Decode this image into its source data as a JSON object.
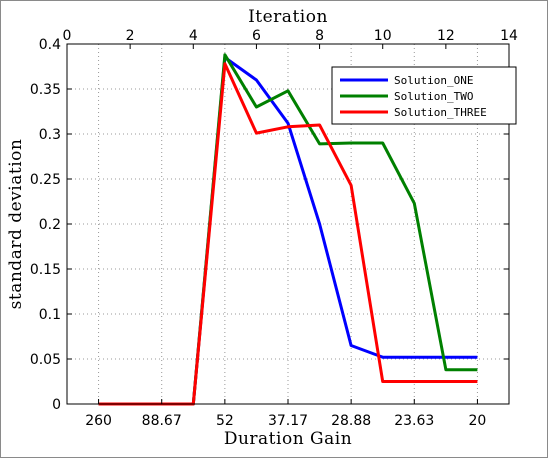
{
  "chart_data": {
    "type": "line",
    "xlabel_top": "Iteration",
    "xlabel": "Duration Gain",
    "ylabel": "standard deviation",
    "xlim": [
      0,
      14
    ],
    "ylim": [
      0,
      0.4
    ],
    "x_ticks_top": [
      "0",
      "2",
      "4",
      "6",
      "8",
      "10",
      "12",
      "14"
    ],
    "x_ticks_top_values": [
      0,
      2,
      4,
      6,
      8,
      10,
      12,
      14
    ],
    "x_ticks_bottom": [
      "260",
      "88.67",
      "52",
      "37.17",
      "28.88",
      "23.63",
      "20"
    ],
    "x_ticks_bottom_values": [
      1,
      3,
      5,
      7,
      9,
      11,
      13
    ],
    "y_ticks": [
      "0",
      "0.05",
      "0.1",
      "0.15",
      "0.2",
      "0.25",
      "0.3",
      "0.35",
      "0.4"
    ],
    "y_ticks_values": [
      0,
      0.05,
      0.1,
      0.15,
      0.2,
      0.25,
      0.3,
      0.35,
      0.4
    ],
    "grid": true,
    "legend_position": "top-right",
    "x": [
      1,
      2,
      3,
      4,
      5,
      6,
      7,
      8,
      9,
      10,
      11,
      12,
      13
    ],
    "series": [
      {
        "name": "Solution_ONE",
        "color": "#0000ff",
        "values": [
          0,
          0,
          0,
          0,
          0.385,
          0.36,
          0.312,
          0.2,
          0.065,
          0.052,
          0.052,
          0.052,
          0.052
        ]
      },
      {
        "name": "Solution_TWO",
        "color": "#008000",
        "values": [
          0,
          0,
          0,
          0,
          0.388,
          0.33,
          0.348,
          0.289,
          0.29,
          0.29,
          0.223,
          0.038,
          0.038
        ]
      },
      {
        "name": "Solution_THREE",
        "color": "#ff0000",
        "values": [
          0,
          0,
          0,
          0,
          0.378,
          0.301,
          0.308,
          0.31,
          0.243,
          0.025,
          0.025,
          0.025,
          0.025
        ]
      }
    ]
  }
}
